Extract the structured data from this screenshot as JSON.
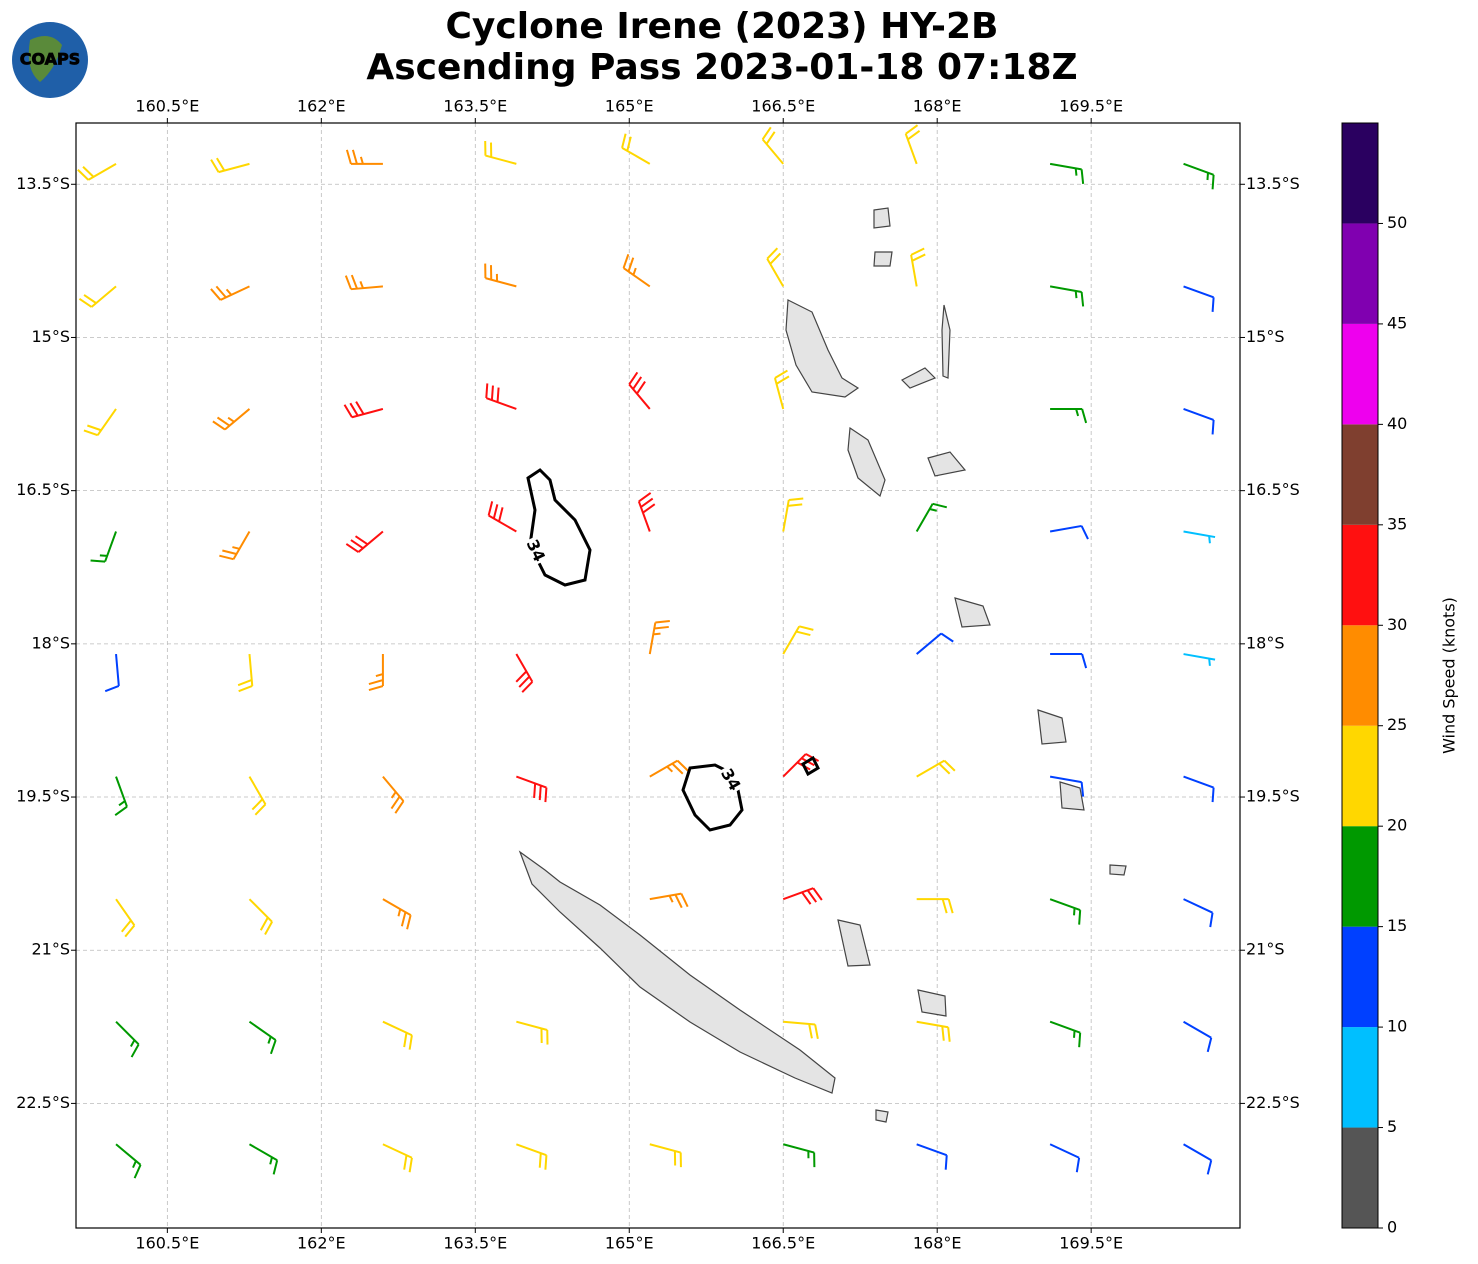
{
  "chart_data": {
    "type": "barb-map",
    "logo": "COAPS",
    "title": "Cyclone Irene (2023) HY-2B",
    "subtitle": "Ascending Pass 2023-01-18 07:18Z",
    "xlim": [
      159.61,
      170.95
    ],
    "ylim": [
      -23.72,
      -12.9
    ],
    "xticks": [
      {
        "value": 160.5,
        "label": "160.5°E"
      },
      {
        "value": 162,
        "label": "162°E"
      },
      {
        "value": 163.5,
        "label": "163.5°E"
      },
      {
        "value": 165,
        "label": "165°E"
      },
      {
        "value": 166.5,
        "label": "166.5°E"
      },
      {
        "value": 168,
        "label": "168°E"
      },
      {
        "value": 169.5,
        "label": "169.5°E"
      }
    ],
    "yticks": [
      {
        "value": -13.5,
        "label": "13.5°S"
      },
      {
        "value": -15,
        "label": "15°S"
      },
      {
        "value": -16.5,
        "label": "16.5°S"
      },
      {
        "value": -18,
        "label": "18°S"
      },
      {
        "value": -19.5,
        "label": "19.5°S"
      },
      {
        "value": -21,
        "label": "21°S"
      },
      {
        "value": -22.5,
        "label": "22.5°S"
      }
    ],
    "grid": true,
    "contour_level": 34,
    "barbs": {
      "lons": [
        160.0,
        161.3,
        162.6,
        163.9,
        165.2,
        166.5,
        167.8,
        169.1,
        170.4
      ],
      "lats": [
        -13.3,
        -14.5,
        -15.7,
        -16.9,
        -18.1,
        -19.3,
        -20.5,
        -21.7,
        -22.9
      ],
      "speed": [
        [
          22,
          24,
          25,
          24,
          22,
          20,
          22,
          18,
          15
        ],
        [
          22,
          26,
          28,
          28,
          26,
          24,
          22,
          17,
          14
        ],
        [
          20,
          27,
          32,
          33,
          30,
          22,
          null,
          16,
          12
        ],
        [
          16,
          25,
          30,
          34,
          33,
          24,
          16,
          12,
          8
        ],
        [
          12,
          22,
          28,
          30,
          28,
          22,
          14,
          10,
          8
        ],
        [
          15,
          22,
          26,
          30,
          28,
          33,
          22,
          14,
          12
        ],
        [
          20,
          24,
          28,
          null,
          26,
          30,
          22,
          18,
          14
        ],
        [
          17,
          19,
          22,
          22,
          null,
          22,
          22,
          16,
          12
        ],
        [
          15,
          17,
          20,
          22,
          22,
          18,
          14,
          12,
          10
        ]
      ],
      "direction": [
        [
          240,
          255,
          270,
          285,
          300,
          320,
          340,
          100,
          110
        ],
        [
          230,
          245,
          265,
          285,
          305,
          330,
          350,
          100,
          110
        ],
        [
          215,
          230,
          255,
          290,
          320,
          345,
          null,
          90,
          110
        ],
        [
          200,
          210,
          230,
          300,
          340,
          10,
          30,
          80,
          100
        ],
        [
          175,
          175,
          180,
          150,
          10,
          30,
          50,
          90,
          100
        ],
        [
          160,
          150,
          140,
          110,
          60,
          45,
          60,
          100,
          110
        ],
        [
          145,
          135,
          120,
          null,
          80,
          70,
          90,
          110,
          115
        ],
        [
          135,
          125,
          115,
          105,
          null,
          95,
          100,
          110,
          120
        ],
        [
          130,
          120,
          115,
          110,
          105,
          105,
          110,
          115,
          120
        ]
      ]
    },
    "colorbar": {
      "label": "Wind Speed (knots)",
      "clim": [
        0,
        55
      ],
      "ticks": [
        0,
        5,
        10,
        15,
        20,
        25,
        30,
        35,
        40,
        45,
        50
      ],
      "colors": [
        "#555555",
        "#00bfff",
        "#0040ff",
        "#009900",
        "#ffd700",
        "#ff8c00",
        "#ff1010",
        "#7f3f2f",
        "#ee00ee",
        "#8000b0",
        "#2a0060"
      ]
    }
  }
}
